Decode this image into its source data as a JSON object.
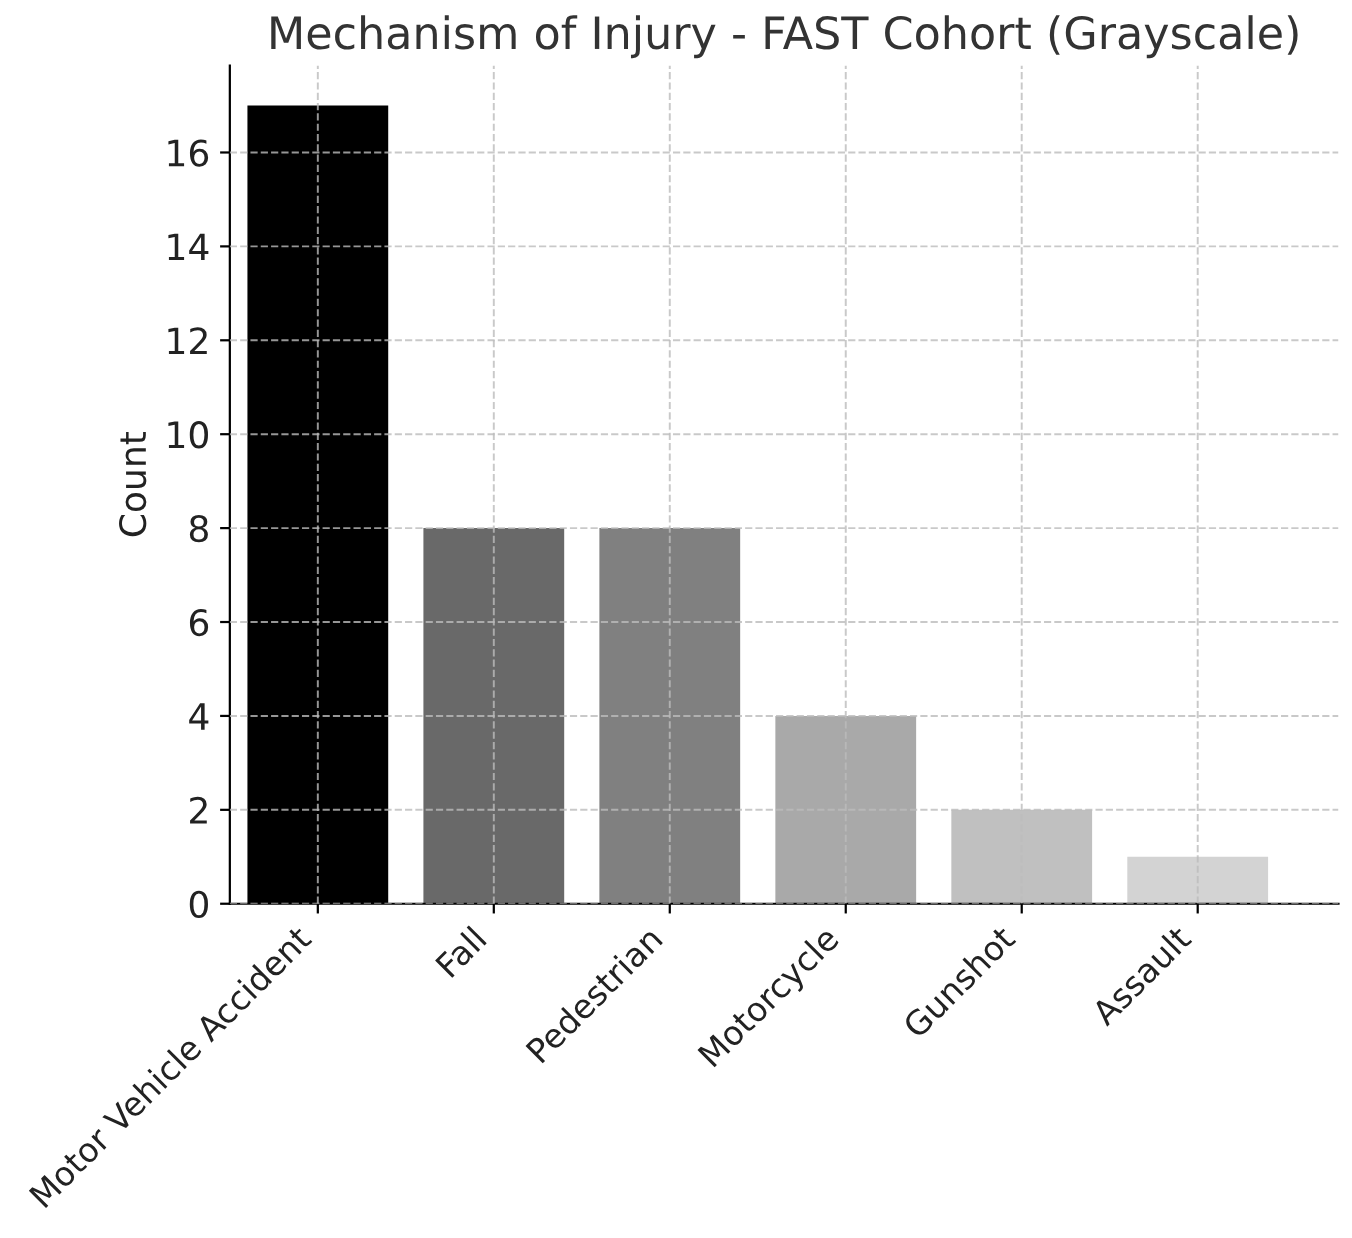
{
  "chart_data": {
    "type": "bar",
    "title": "Mechanism of Injury - FAST Cohort (Grayscale)",
    "ylabel": "Count",
    "categories": [
      "Motor Vehicle Accident",
      "Fall",
      "Pedestrian",
      "Motorcycle",
      "Gunshot",
      "Assault"
    ],
    "values": [
      17,
      8,
      8,
      4,
      2,
      1
    ],
    "colors": [
      "#000000",
      "#696969",
      "#808080",
      "#a9a9a9",
      "#c0c0c0",
      "#d3d3d3"
    ],
    "ylim": [
      0,
      17.85
    ],
    "yticks": [
      0,
      2,
      4,
      6,
      8,
      10,
      12,
      14,
      16
    ],
    "grid": true
  }
}
